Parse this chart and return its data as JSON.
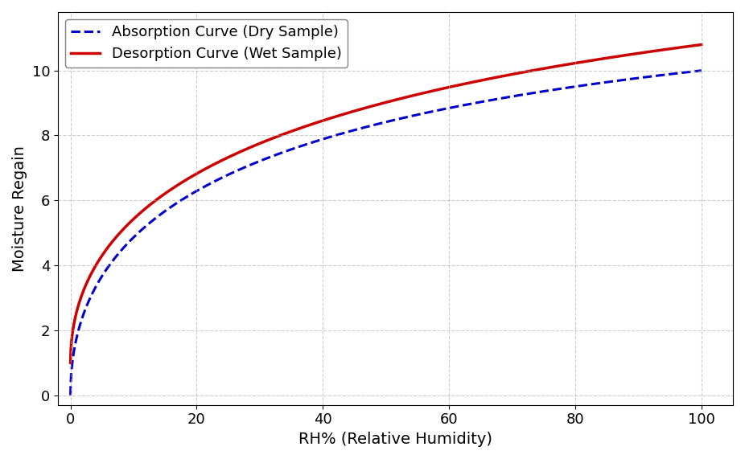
{
  "xlabel": "RH% (Relative Humidity)",
  "ylabel": "Moisture Regain",
  "xlim": [
    -2,
    105
  ],
  "ylim": [
    -0.3,
    11.8
  ],
  "xticks": [
    0,
    20,
    40,
    60,
    80,
    100
  ],
  "yticks": [
    0,
    2,
    4,
    6,
    8,
    10
  ],
  "grid_color": "#aaaaaa",
  "grid_linestyle": "--",
  "grid_alpha": 0.6,
  "absorption_color": "#0000cc",
  "absorption_linestyle": "--",
  "absorption_linewidth": 2.2,
  "absorption_label": "Absorption Curve (Dry Sample)",
  "desorption_color": "#cc0000",
  "desorption_linestyle": "-",
  "desorption_linewidth": 2.5,
  "desorption_label": "Desorption Curve (Wet Sample)",
  "legend_loc": "upper left",
  "legend_fontsize": 13,
  "axis_label_fontsize": 14,
  "tick_fontsize": 13,
  "background_color": "#ffffff",
  "figure_facecolor": "#ffffff",
  "abs_k": 5.0,
  "abs_C": 2.17,
  "des_D": 1.0,
  "des_k": 5.0,
  "des_E": 1.95
}
